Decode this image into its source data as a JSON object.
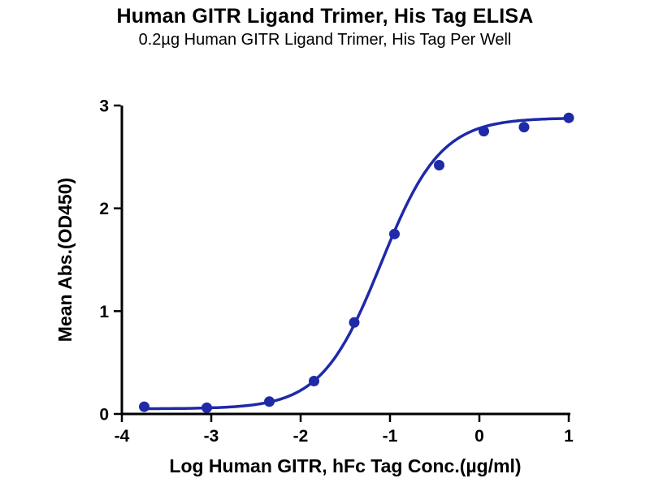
{
  "chart_data": {
    "type": "scatter",
    "title": "Human GITR Ligand Trimer, His Tag ELISA",
    "subtitle": "0.2µg Human GITR Ligand Trimer, His Tag Per Well",
    "xlabel": "Log Human GITR, hFc Tag Conc.(µg/ml)",
    "ylabel": "Mean Abs.(OD450)",
    "xlim": [
      -4,
      1
    ],
    "ylim": [
      0,
      3
    ],
    "xticks": [
      -4,
      -3,
      -2,
      -1,
      0,
      1
    ],
    "yticks": [
      0,
      1,
      2,
      3
    ],
    "grid": false,
    "legend": "none",
    "marker_color": "#1E2AA8",
    "line_color": "#1E2AA8",
    "axis_color": "#000000",
    "points": {
      "x": [
        -3.75,
        -3.05,
        -2.35,
        -1.85,
        -1.4,
        -0.95,
        -0.45,
        0.05,
        0.5,
        1.0
      ],
      "y": [
        0.07,
        0.06,
        0.12,
        0.32,
        0.89,
        1.75,
        2.42,
        2.75,
        2.79,
        2.88
      ]
    },
    "fit_curve": {
      "model": "4PL",
      "bottom": 0.05,
      "top": 2.88,
      "log_ec50": -1.1,
      "hill": 1.3
    }
  }
}
